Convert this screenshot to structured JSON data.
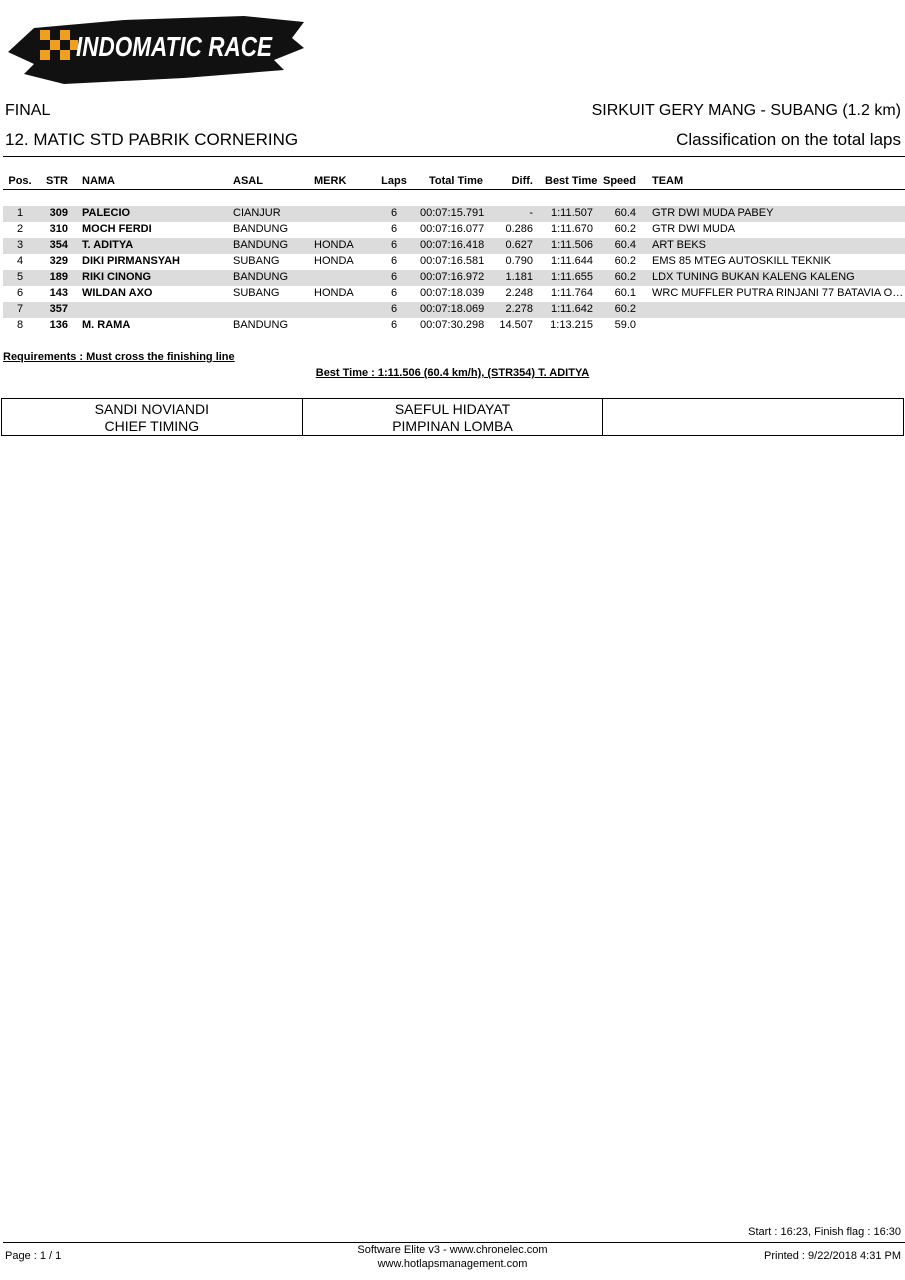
{
  "logo": {
    "text": "INDOMATIC RACE",
    "colors": {
      "brush": "#111111",
      "check": "#f0a020",
      "text": "#ffffff"
    }
  },
  "header": {
    "stage": "FINAL",
    "circuit": "SIRKUIT GERY MANG - SUBANG (1.2 km)",
    "race": "12. MATIC STD PABRIK CORNERING",
    "classification": "Classification on the total laps"
  },
  "table": {
    "columns": [
      "Pos.",
      "STR",
      "NAMA",
      "ASAL",
      "MERK",
      "Laps",
      "Total Time",
      "Diff.",
      "Best Time",
      "Speed",
      "TEAM"
    ],
    "rows": [
      [
        "1",
        "309",
        "PALECIO",
        "CIANJUR",
        "",
        "6",
        "00:07:15.791",
        "-",
        "1:11.507",
        "60.4",
        "GTR DWI MUDA PABEY"
      ],
      [
        "2",
        "310",
        "MOCH FERDI",
        "BANDUNG",
        "",
        "6",
        "00:07:16.077",
        "0.286",
        "1:11.670",
        "60.2",
        "GTR DWI MUDA"
      ],
      [
        "3",
        "354",
        "T. ADITYA",
        "BANDUNG",
        "HONDA",
        "6",
        "00:07:16.418",
        "0.627",
        "1:11.506",
        "60.4",
        "ART BEKS"
      ],
      [
        "4",
        "329",
        "DIKI PIRMANSYAH",
        "SUBANG",
        "HONDA",
        "6",
        "00:07:16.581",
        "0.790",
        "1:11.644",
        "60.2",
        "EMS 85 MTEG AUTOSKILL TEKNIK"
      ],
      [
        "5",
        "189",
        "RIKI CINONG",
        "BANDUNG",
        "",
        "6",
        "00:07:16.972",
        "1.181",
        "1:11.655",
        "60.2",
        "LDX TUNING BUKAN KALENG KALENG"
      ],
      [
        "6",
        "143",
        "WILDAN AXO",
        "SUBANG",
        "HONDA",
        "6",
        "00:07:18.039",
        "2.248",
        "1:11.764",
        "60.1",
        "WRC MUFFLER PUTRA RINJANI 77 BATAVIA O…"
      ],
      [
        "7",
        "357",
        "",
        "",
        "",
        "6",
        "00:07:18.069",
        "2.278",
        "1:11.642",
        "60.2",
        ""
      ],
      [
        "8",
        "136",
        "M. RAMA",
        "BANDUNG",
        "",
        "6",
        "00:07:30.298",
        "14.507",
        "1:13.215",
        "59.0",
        ""
      ]
    ]
  },
  "requirements": "Requirements : Must cross the finishing line",
  "best_time": "Best Time : 1:11.506 (60.4 km/h), (STR354) T. ADITYA",
  "signatures": [
    {
      "name": "SANDI NOVIANDI",
      "role": "CHIEF TIMING"
    },
    {
      "name": "SAEFUL HIDAYAT",
      "role": "PIMPINAN LOMBA"
    },
    {
      "name": "",
      "role": ""
    }
  ],
  "footer": {
    "start_finish": "Start : 16:23, Finish flag : 16:30",
    "page": "Page : 1 / 1",
    "software": "Software Elite v3 - www.chronelec.com",
    "website": "www.hotlapsmanagement.com",
    "printed": "Printed : 9/22/2018 4:31 PM"
  }
}
